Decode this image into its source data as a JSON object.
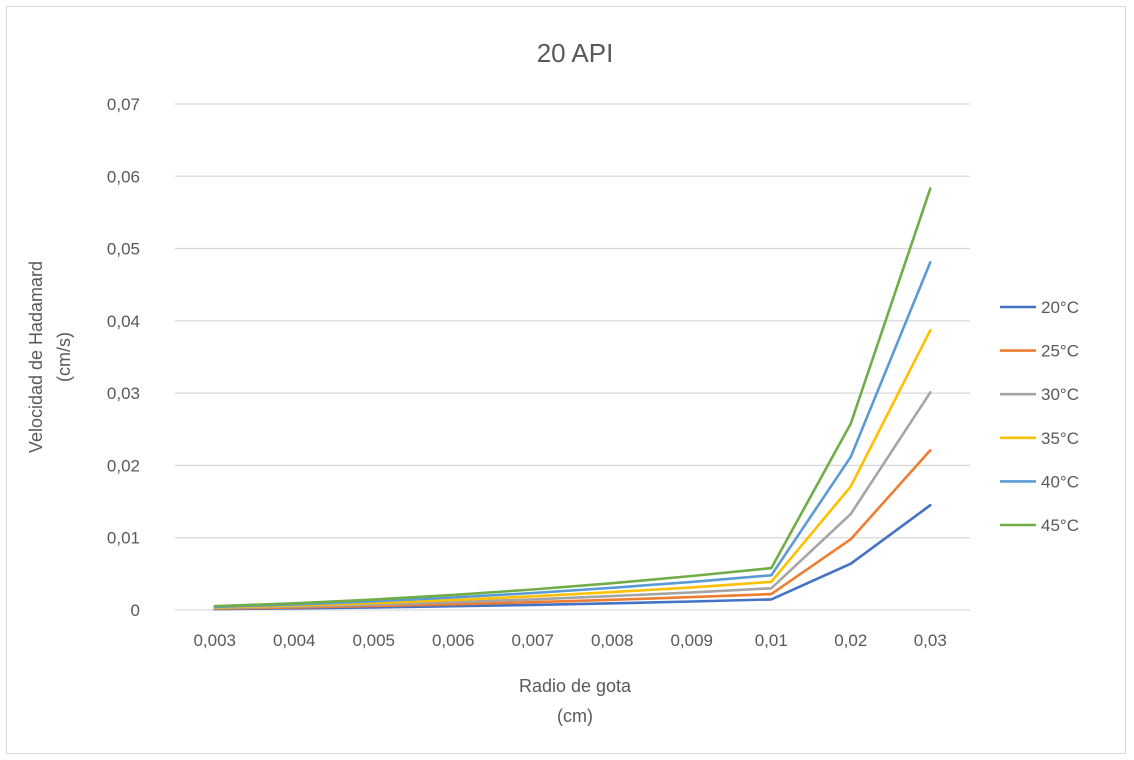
{
  "chart_data": {
    "type": "line",
    "title": "20 API",
    "xlabel_lines": [
      "Radio de gota",
      "(cm)"
    ],
    "ylabel_lines": [
      "Velocidad de Hadamard",
      "(cm/s)"
    ],
    "categories": [
      "0,003",
      "0,004",
      "0,005",
      "0,006",
      "0,007",
      "0,008",
      "0,009",
      "0,01",
      "0,02",
      "0,03"
    ],
    "ylim": [
      0,
      0.07
    ],
    "yticks": [
      {
        "value": 0,
        "label": "0"
      },
      {
        "value": 0.01,
        "label": "0,01"
      },
      {
        "value": 0.02,
        "label": "0,02"
      },
      {
        "value": 0.03,
        "label": "0,03"
      },
      {
        "value": 0.04,
        "label": "0,04"
      },
      {
        "value": 0.05,
        "label": "0,05"
      },
      {
        "value": 0.06,
        "label": "0,06"
      },
      {
        "value": 0.07,
        "label": "0,07"
      }
    ],
    "grid": true,
    "legend_position": "right",
    "series": [
      {
        "name": "20°C",
        "color": "#4472c4",
        "values": [
          0.00013,
          0.00023,
          0.00036,
          0.00052,
          0.00071,
          0.00093,
          0.00118,
          0.00146,
          0.0064,
          0.0145
        ]
      },
      {
        "name": "25°C",
        "color": "#ed7d31",
        "values": [
          0.0002,
          0.00035,
          0.00055,
          0.00079,
          0.00108,
          0.00141,
          0.00178,
          0.0022,
          0.0098,
          0.0221
        ]
      },
      {
        "name": "30°C",
        "color": "#a5a5a5",
        "values": [
          0.00027,
          0.00048,
          0.00075,
          0.00108,
          0.00147,
          0.00192,
          0.00243,
          0.003,
          0.0133,
          0.0301
        ]
      },
      {
        "name": "35°C",
        "color": "#ffc000",
        "values": [
          0.00035,
          0.00062,
          0.00097,
          0.00139,
          0.00189,
          0.00247,
          0.00312,
          0.0039,
          0.0171,
          0.0387
        ]
      },
      {
        "name": "40°C",
        "color": "#5b9bd5",
        "values": [
          0.00043,
          0.00077,
          0.0012,
          0.00173,
          0.00235,
          0.00307,
          0.00389,
          0.0048,
          0.0212,
          0.0481
        ]
      },
      {
        "name": "45°C",
        "color": "#70ad47",
        "values": [
          0.00052,
          0.00093,
          0.00145,
          0.00209,
          0.00284,
          0.00371,
          0.0047,
          0.0058,
          0.0258,
          0.0583
        ]
      }
    ]
  }
}
